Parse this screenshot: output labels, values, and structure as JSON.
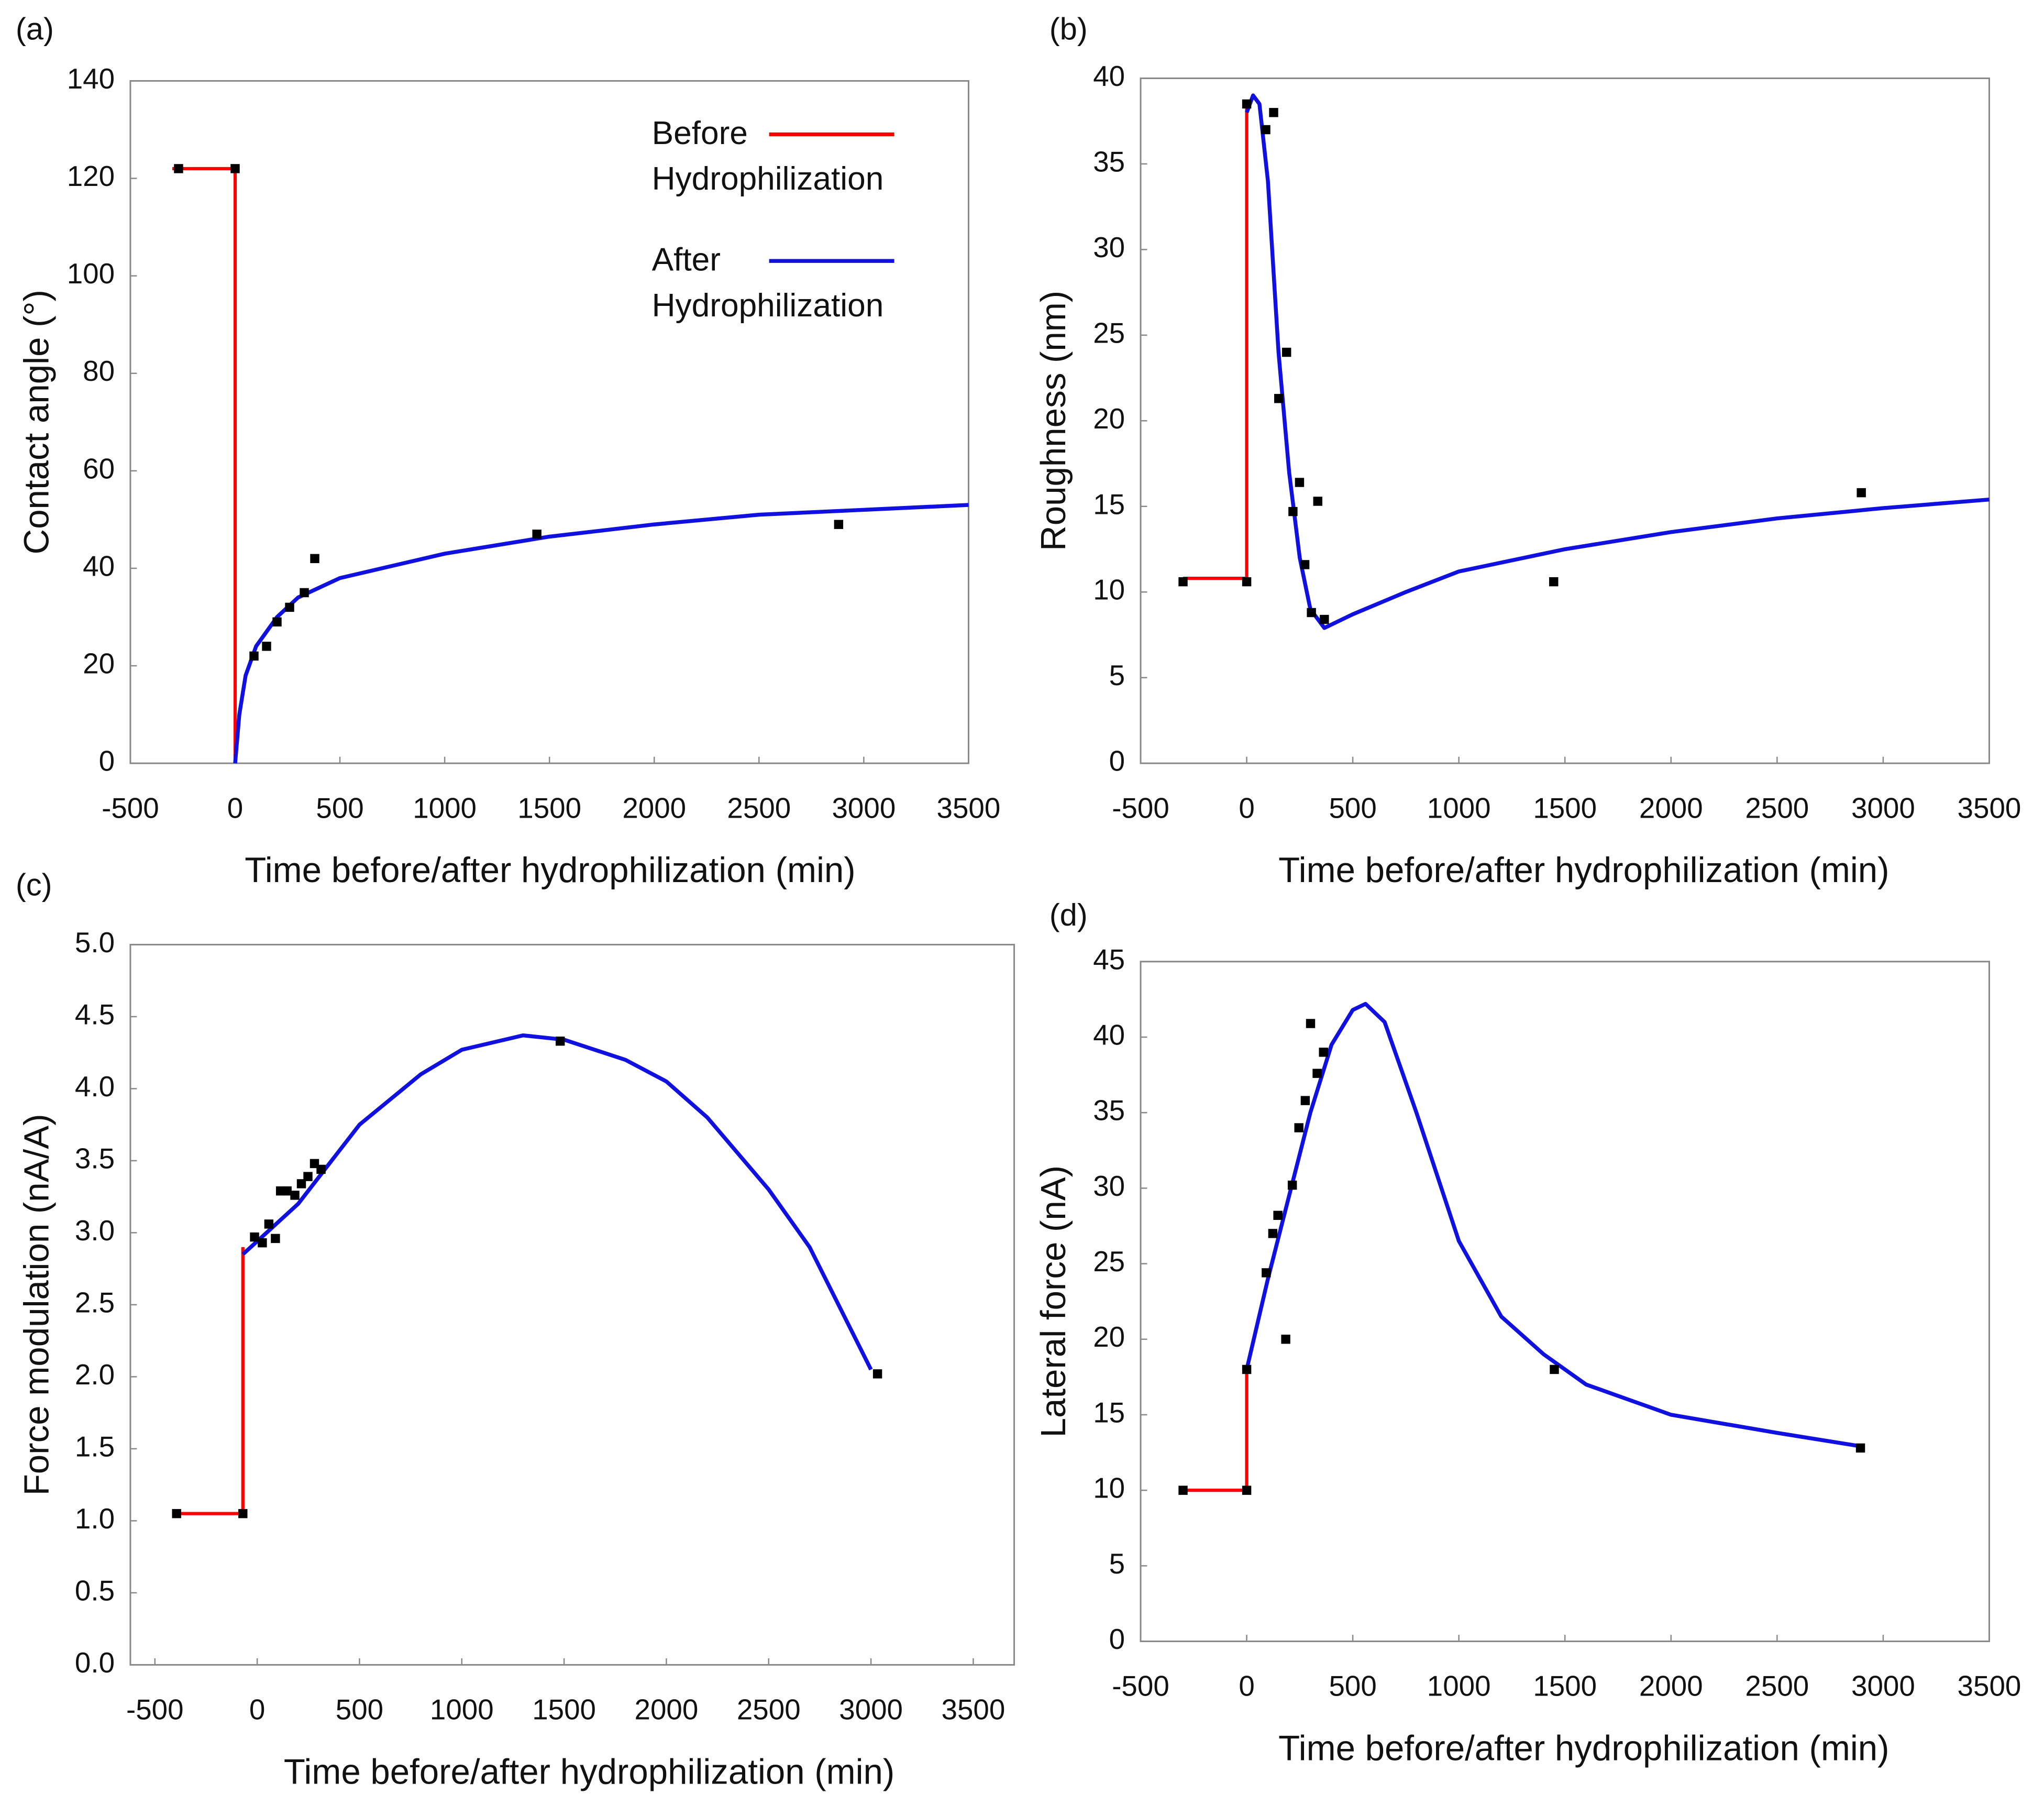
{
  "chart_data": [
    {
      "type": "line",
      "panel": "(a)",
      "xlabel": "Time before/after hydrophilization (min)",
      "ylabel": "Contact angle (°)",
      "xlim": [
        -500,
        3500
      ],
      "ylim": [
        0,
        140
      ],
      "xticks": [
        -500,
        0,
        500,
        1000,
        1500,
        2000,
        2500,
        3000,
        3500
      ],
      "yticks": [
        0,
        20,
        40,
        60,
        80,
        100,
        120,
        140
      ],
      "series": [
        {
          "color": "#000000",
          "marker": "square",
          "x": [
            -270,
            0,
            90,
            150,
            200,
            260,
            330,
            380,
            1440,
            2880
          ],
          "values": [
            122,
            122,
            22,
            24,
            29,
            32,
            35,
            42,
            47,
            49
          ]
        },
        {
          "name": "Before Hydrophilization",
          "color": "#ff0000",
          "x": [
            -300,
            0,
            0
          ],
          "values": [
            122,
            122,
            0
          ]
        },
        {
          "name": "After Hydrophilization",
          "color": "#1010e0",
          "x": [
            0,
            20,
            50,
            100,
            200,
            300,
            500,
            1000,
            1500,
            2000,
            2500,
            3000,
            3500
          ],
          "values": [
            0,
            10,
            18,
            24,
            30,
            34,
            38,
            43,
            46.5,
            49,
            51,
            52,
            53
          ]
        }
      ]
    },
    {
      "type": "line",
      "panel": "(b)",
      "xlabel": "Time before/after hydrophilization (min)",
      "ylabel": "Roughness (nm)",
      "xlim": [
        -500,
        3500
      ],
      "ylim": [
        0,
        40
      ],
      "xticks": [
        -500,
        0,
        500,
        1000,
        1500,
        2000,
        2500,
        3000,
        3500
      ],
      "yticks": [
        0,
        5,
        10,
        15,
        20,
        25,
        30,
        35,
        40
      ],
      "series": [
        {
          "color": "#000000",
          "marker": "square",
          "x": [
            -300,
            0,
            0,
            90,
            127,
            151,
            188,
            218,
            249,
            274,
            305,
            335,
            366,
            1447,
            2897
          ],
          "values": [
            10.6,
            10.6,
            38.5,
            37,
            38,
            21.3,
            24,
            14.7,
            16.4,
            11.6,
            8.8,
            15.3,
            8.4,
            10.6,
            15.8
          ]
        },
        {
          "color": "#ff0000",
          "x": [
            -300,
            0,
            0
          ],
          "values": [
            10.8,
            10.8,
            38.5
          ]
        },
        {
          "color": "#1010e0",
          "x": [
            0,
            30,
            60,
            100,
            150,
            200,
            250,
            300,
            366,
            500,
            750,
            1000,
            1500,
            2000,
            2500,
            3000,
            3500
          ],
          "values": [
            38,
            39,
            38.5,
            34,
            24,
            17,
            12,
            9,
            7.9,
            8.7,
            10,
            11.2,
            12.5,
            13.5,
            14.3,
            14.9,
            15.4
          ]
        }
      ]
    },
    {
      "type": "line",
      "panel": "(c)",
      "xlabel": "Time before/after hydrophilization (min)",
      "ylabel": "Force modulation (nA/A)",
      "xlim": [
        -620,
        3700
      ],
      "ylim": [
        0,
        5
      ],
      "xticks": [
        -500,
        0,
        500,
        1000,
        1500,
        2000,
        2500,
        3000,
        3500
      ],
      "yticks": [
        {
          "value": 0,
          "label": "0.0"
        },
        0.5,
        {
          "value": 1,
          "label": "1.0"
        },
        1.5,
        {
          "value": 2,
          "label": "2.0"
        },
        2.5,
        {
          "value": 3,
          "label": "3.0"
        },
        3.5,
        {
          "value": 4,
          "label": "4.0"
        },
        4.5,
        {
          "value": 5,
          "label": "5.0"
        }
      ],
      "series": [
        {
          "color": "#000000",
          "marker": "square",
          "x": [
            -394,
            -70,
            -13,
            25,
            57,
            89,
            114,
            146,
            184,
            216,
            248,
            280,
            312,
            1481,
            3032
          ],
          "values": [
            1.05,
            1.05,
            2.97,
            2.93,
            3.06,
            2.96,
            3.29,
            3.29,
            3.26,
            3.34,
            3.39,
            3.48,
            3.44,
            4.33,
            2.02
          ]
        },
        {
          "color": "#ff0000",
          "x": [
            -400,
            -70,
            -70
          ],
          "values": [
            1.05,
            1.05,
            2.9
          ]
        },
        {
          "color": "#1010e0",
          "x": [
            -70,
            200,
            500,
            800,
            1000,
            1300,
            1500,
            1800,
            2000,
            2200,
            2500,
            2700,
            3000
          ],
          "values": [
            2.85,
            3.2,
            3.75,
            4.1,
            4.27,
            4.37,
            4.34,
            4.2,
            4.05,
            3.8,
            3.3,
            2.9,
            2.05
          ]
        }
      ]
    },
    {
      "type": "line",
      "panel": "(d)",
      "xlabel": "Time before/after hydrophilization (min)",
      "ylabel": "Lateral force (nA)",
      "xlim": [
        -500,
        3500
      ],
      "ylim": [
        0,
        45
      ],
      "xticks": [
        -500,
        0,
        500,
        1000,
        1500,
        2000,
        2500,
        3000,
        3500
      ],
      "yticks": [
        0,
        5,
        10,
        15,
        20,
        25,
        30,
        35,
        40,
        45
      ],
      "series": [
        {
          "color": "#000000",
          "marker": "square",
          "x": [
            -300,
            0,
            0,
            92,
            123,
            147,
            184,
            215,
            246,
            276,
            301,
            332,
            362,
            1450,
            2893
          ],
          "values": [
            10,
            10,
            18,
            24.4,
            27,
            28.2,
            20,
            30.2,
            34,
            35.8,
            40.9,
            37.6,
            39,
            18,
            12.8
          ]
        },
        {
          "color": "#ff0000",
          "x": [
            -300,
            0,
            0
          ],
          "values": [
            10,
            10,
            18
          ]
        },
        {
          "color": "#1010e0",
          "x": [
            0,
            100,
            200,
            300,
            400,
            500,
            560,
            650,
            800,
            1000,
            1200,
            1400,
            1600,
            2000,
            2500,
            2900
          ],
          "values": [
            18,
            24,
            29.5,
            35,
            39.5,
            41.8,
            42.2,
            41,
            35,
            26.5,
            21.5,
            19,
            17,
            15,
            13.8,
            12.9
          ]
        }
      ]
    }
  ]
}
